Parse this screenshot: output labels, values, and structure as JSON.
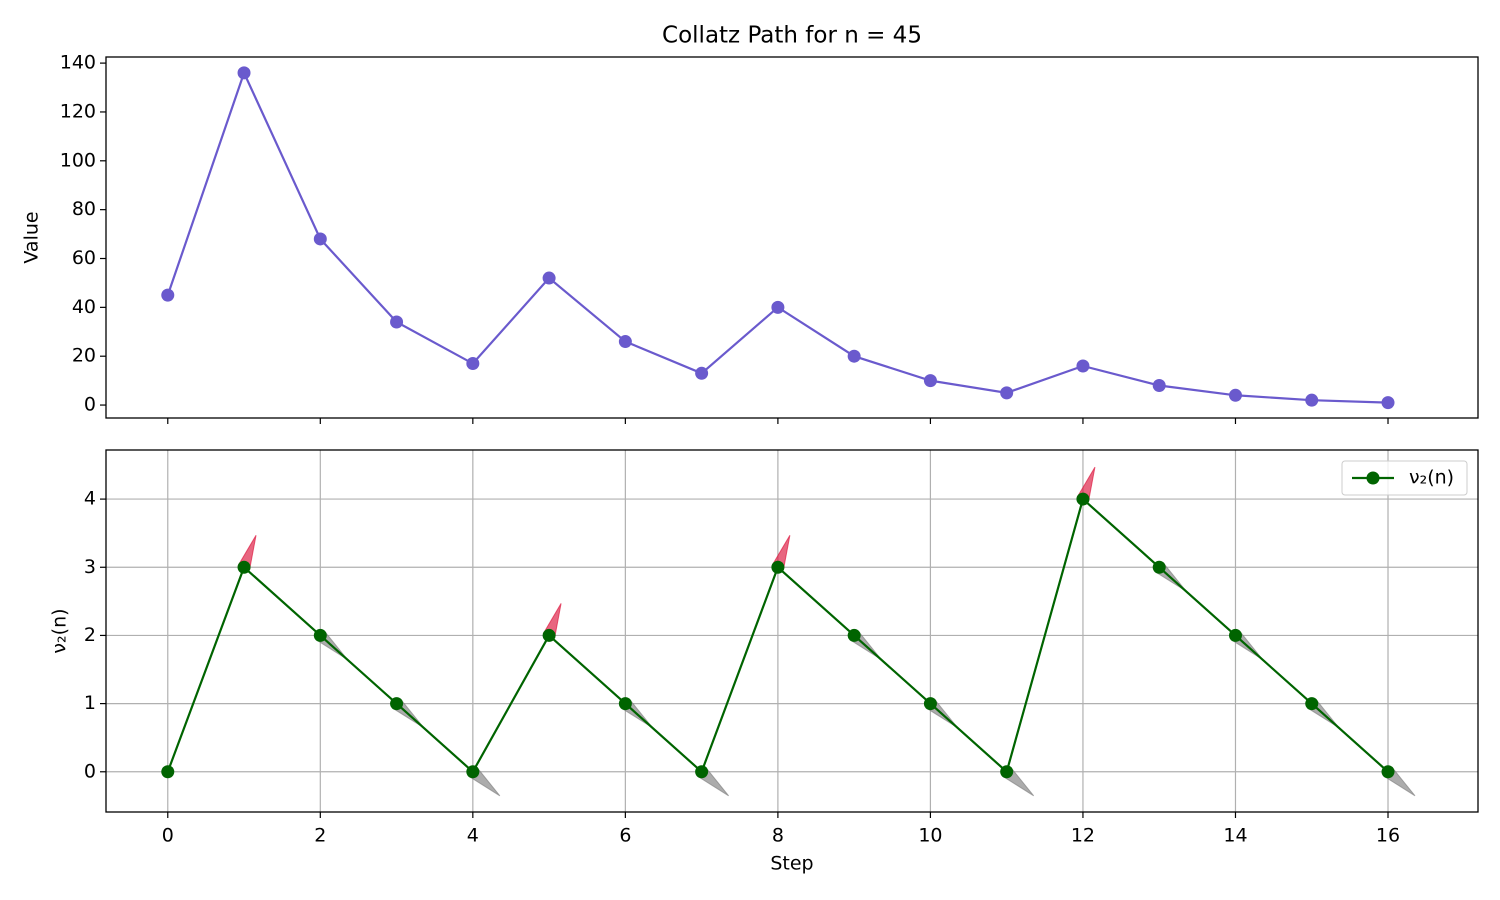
{
  "chart_data": [
    {
      "type": "line",
      "title": "Collatz Path for n = 45",
      "ylabel": "Value",
      "x": [
        0,
        1,
        2,
        3,
        4,
        5,
        6,
        7,
        8,
        9,
        10,
        11,
        12,
        13,
        14,
        15,
        16
      ],
      "series": [
        {
          "color": "#6a5acd",
          "values": [
            45,
            136,
            68,
            34,
            17,
            52,
            26,
            13,
            40,
            20,
            10,
            5,
            16,
            8,
            4,
            2,
            1
          ]
        }
      ],
      "xlim": [
        -0.81,
        17.18
      ],
      "xticks": [
        0,
        2,
        4,
        6,
        8,
        10,
        12,
        14,
        16
      ],
      "ylim": [
        -5.3,
        142.5
      ],
      "yticks": [
        0,
        20,
        40,
        60,
        80,
        100,
        120,
        140
      ],
      "grid": false
    },
    {
      "type": "line",
      "xlabel": "Step",
      "ylabel": "ν₂(n)",
      "x": [
        0,
        1,
        2,
        3,
        4,
        5,
        6,
        7,
        8,
        9,
        10,
        11,
        12,
        13,
        14,
        15,
        16
      ],
      "series": [
        {
          "name": "ν₂(n)",
          "color": "#006400",
          "values": [
            0,
            3,
            2,
            1,
            0,
            2,
            1,
            0,
            3,
            2,
            1,
            0,
            4,
            3,
            2,
            1,
            0
          ]
        }
      ],
      "xlim": [
        -0.81,
        17.18
      ],
      "xticks": [
        0,
        2,
        4,
        6,
        8,
        10,
        12,
        14,
        16
      ],
      "ylim": [
        -0.59,
        4.72
      ],
      "yticks": [
        0,
        1,
        2,
        3,
        4
      ],
      "grid": true,
      "legend": "upper right",
      "arrow_colors": {
        "up": "#dc143c",
        "down": "#808080"
      }
    }
  ]
}
